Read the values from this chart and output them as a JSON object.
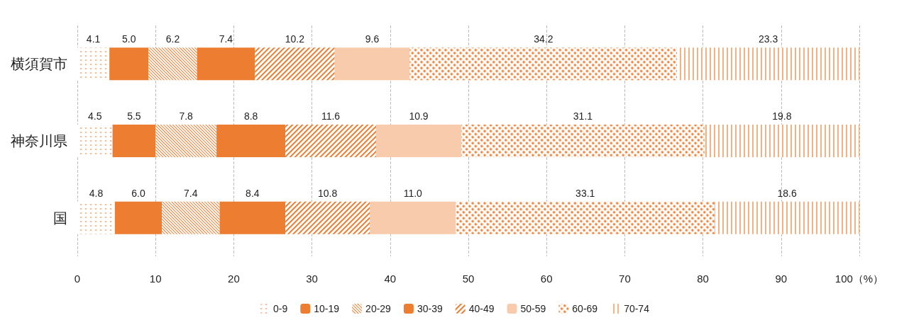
{
  "chart_data": {
    "type": "bar",
    "orientation": "horizontal",
    "stacked": true,
    "categories": [
      "横須賀市",
      "神奈川県",
      "国"
    ],
    "series": [
      {
        "name": "0-9",
        "color": "#ed7d31",
        "values": [
          4.1,
          4.5,
          4.8
        ],
        "value_labels": [
          "4.1",
          "4.5",
          "4.8"
        ]
      },
      {
        "name": "10-19",
        "color": "#ed7d31",
        "values": [
          5.0,
          5.5,
          6.0
        ],
        "value_labels": [
          "5.0",
          "5.5",
          "6.0"
        ]
      },
      {
        "name": "20-29",
        "color": "#ed7d31",
        "values": [
          6.2,
          7.8,
          7.4
        ],
        "value_labels": [
          "6.2",
          "7.8",
          "7.4"
        ]
      },
      {
        "name": "30-39",
        "color": "#ed7d31",
        "values": [
          7.4,
          8.8,
          8.4
        ],
        "value_labels": [
          "7.4",
          "8.8",
          "8.4"
        ]
      },
      {
        "name": "40-49",
        "color": "#ed7d31",
        "values": [
          10.2,
          11.6,
          10.8
        ],
        "value_labels": [
          "10.2",
          "11.6",
          "10.8"
        ]
      },
      {
        "name": "50-59",
        "color": "#f8cbad",
        "values": [
          9.6,
          10.9,
          11.0
        ],
        "value_labels": [
          "9.6",
          "10.9",
          "11.0"
        ]
      },
      {
        "name": "60-69",
        "color": "#ed7d31",
        "values": [
          34.2,
          31.1,
          33.1
        ],
        "value_labels": [
          "34.2",
          "31.1",
          "33.1"
        ]
      },
      {
        "name": "70-74",
        "color": "#ed7d31",
        "values": [
          23.3,
          19.8,
          18.6
        ],
        "value_labels": [
          "23.3",
          "19.8",
          "18.6"
        ]
      }
    ],
    "xlim": [
      0,
      100
    ],
    "xticks": [
      0,
      10,
      20,
      30,
      40,
      50,
      60,
      70,
      80,
      90,
      {
        "value": 100,
        "label": "100（%）"
      }
    ],
    "grid": "x",
    "legend": "bottom"
  }
}
